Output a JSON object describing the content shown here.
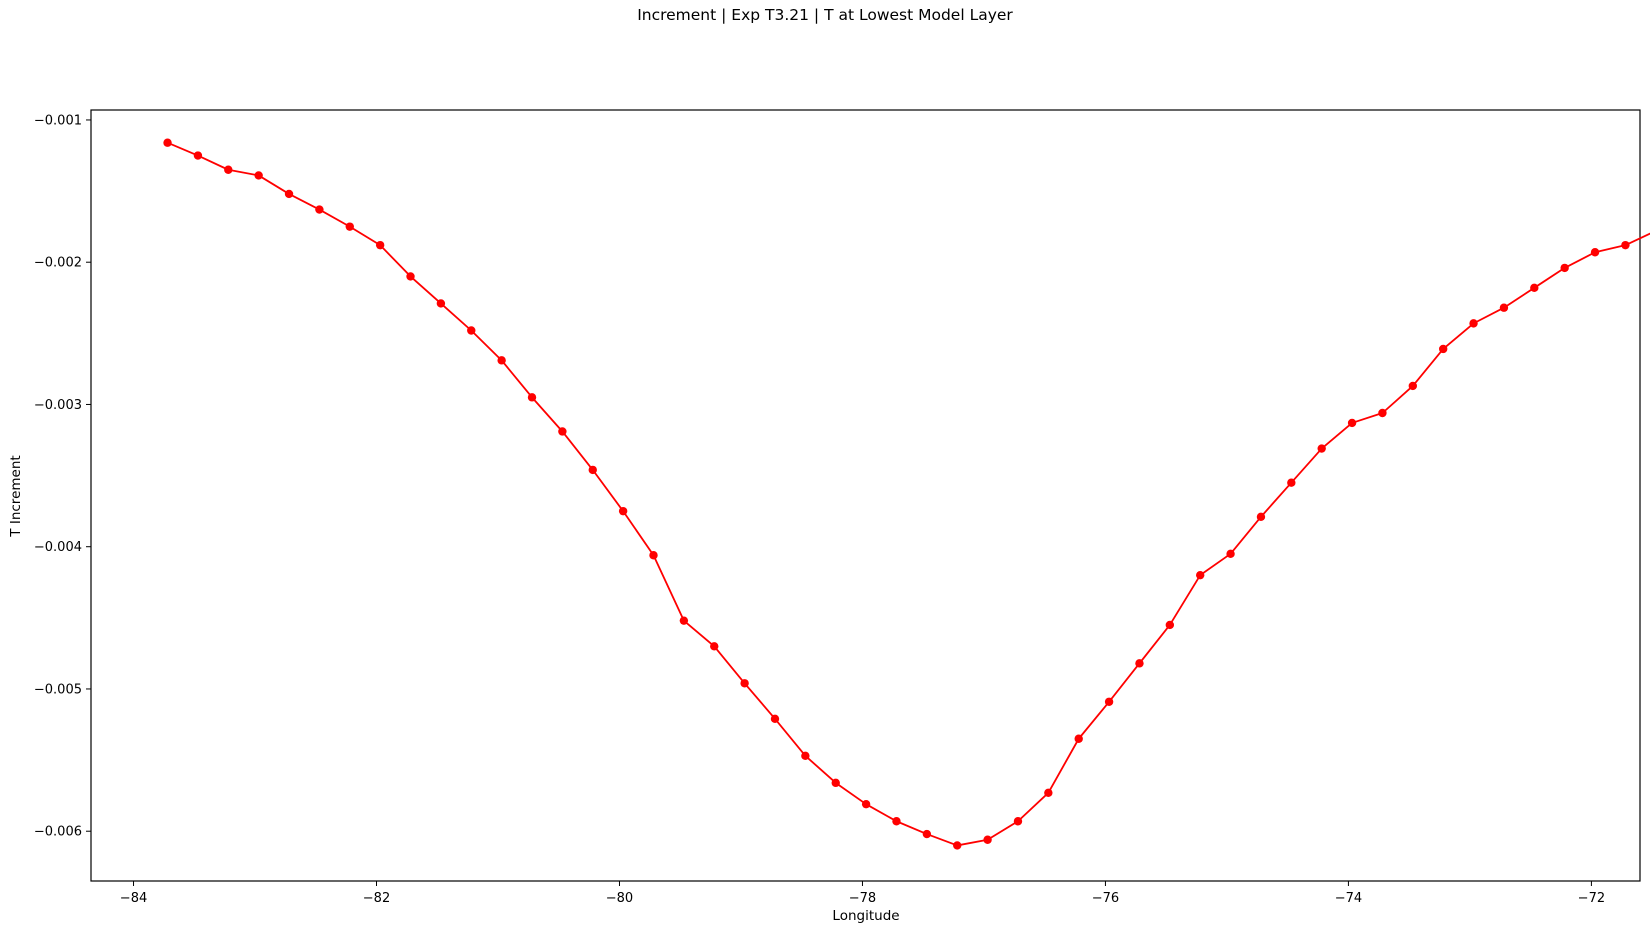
{
  "chart_data": {
    "type": "line",
    "title": "Increment | Exp T3.21 | T at Lowest Model Layer",
    "xlabel": "Longitude",
    "ylabel": "T Increment",
    "xlim": [
      -84.35,
      -71.6
    ],
    "ylim": [
      -0.00635,
      -0.00093
    ],
    "xticks": [
      -84,
      -82,
      -80,
      -78,
      -76,
      -74,
      -72
    ],
    "xtick_labels": [
      "−84",
      "−82",
      "−80",
      "−78",
      "−76",
      "−74",
      "−72"
    ],
    "yticks": [
      -0.001,
      -0.002,
      -0.003,
      -0.004,
      -0.005,
      -0.006
    ],
    "ytick_labels": [
      "−0.001",
      "−0.002",
      "−0.003",
      "−0.004",
      "−0.005",
      "−0.006"
    ],
    "grid": false,
    "legend": "none",
    "series": [
      {
        "color": "#ff0000",
        "marker": "circle",
        "x": [
          -83.72,
          -83.47,
          -83.22,
          -82.97,
          -82.72,
          -82.47,
          -82.22,
          -81.97,
          -81.72,
          -81.47,
          -81.22,
          -80.97,
          -80.72,
          -80.47,
          -80.22,
          -79.97,
          -79.72,
          -79.47,
          -79.22,
          -78.97,
          -78.72,
          -78.47,
          -78.22,
          -77.97,
          -77.72,
          -77.47,
          -77.22,
          -76.97,
          -76.72,
          -76.47,
          -76.22,
          -75.97,
          -75.72,
          -75.47,
          -75.22,
          -74.97,
          -74.72,
          -74.47,
          -74.22,
          -73.97,
          -73.72,
          -73.47,
          -73.22,
          -72.97,
          -72.72,
          -72.47,
          -72.22,
          -71.97,
          -71.72,
          -71.47,
          -71.22
        ],
        "values": [
          -0.00116,
          -0.00125,
          -0.00135,
          -0.00139,
          -0.00152,
          -0.00163,
          -0.00175,
          -0.00188,
          -0.0021,
          -0.00229,
          -0.00248,
          -0.00269,
          -0.00295,
          -0.00319,
          -0.00346,
          -0.00375,
          -0.00406,
          -0.00452,
          -0.0047,
          -0.00496,
          -0.00521,
          -0.00547,
          -0.00566,
          -0.00581,
          -0.00593,
          -0.00602,
          -0.0061,
          -0.00606,
          -0.00593,
          -0.00573,
          -0.00535,
          -0.00509,
          -0.00482,
          -0.00455,
          -0.0042,
          -0.00405,
          -0.00379,
          -0.00355,
          -0.00331,
          -0.00313,
          -0.00306,
          -0.00287,
          -0.00261,
          -0.00243,
          -0.00232,
          -0.00218,
          -0.00204,
          -0.00193,
          -0.00188,
          -0.00178,
          -0.00178
        ]
      }
    ]
  }
}
